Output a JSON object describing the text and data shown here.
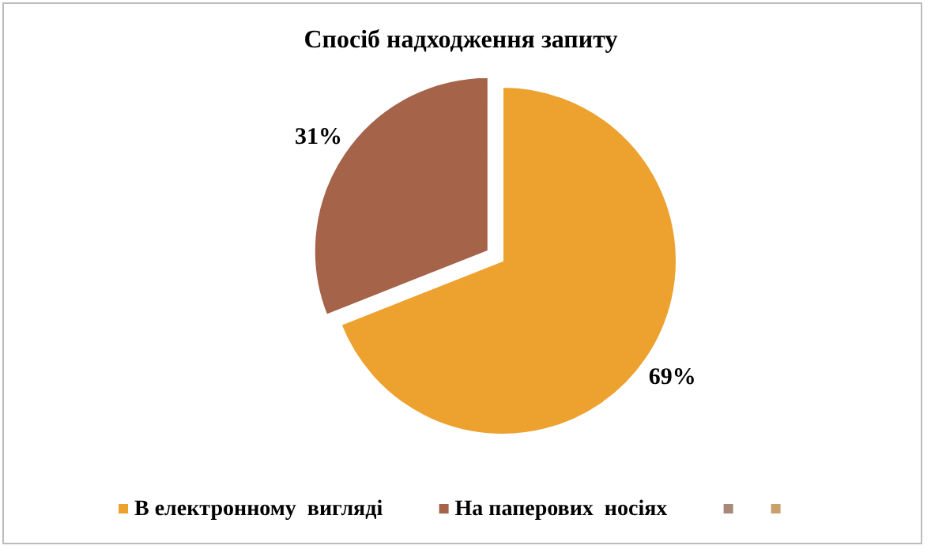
{
  "chart_data": {
    "type": "pie",
    "title": "Спосіб надходження запиту",
    "categories": [
      "В електронному  вигляді",
      "На паперових  носіях",
      null,
      null
    ],
    "values": [
      69,
      31,
      0,
      0
    ],
    "colors": [
      "#eda22f",
      "#a5634a",
      "#a88878",
      "#c9a06a"
    ],
    "value_labels": [
      "69%",
      "31%",
      null,
      null
    ],
    "legend": "bottom"
  }
}
